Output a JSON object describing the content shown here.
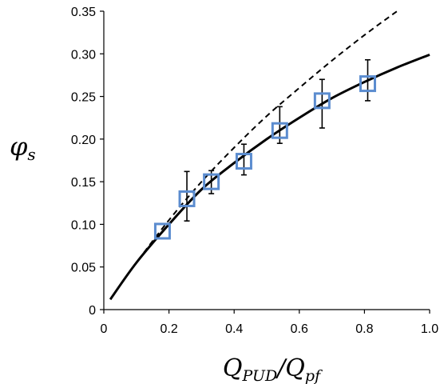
{
  "chart_data": {
    "type": "scatter",
    "title": "",
    "xlabel_main": "Q",
    "xlabel_sub1": "PUD",
    "xlabel_slash": "/Q",
    "xlabel_sub2": "pf",
    "ylabel_main": "φ",
    "ylabel_sub": "s",
    "xlim": [
      0,
      1.0
    ],
    "ylim": [
      0,
      0.35
    ],
    "x_ticks": [
      "0",
      "0.2",
      "0.4",
      "0.6",
      "0.8",
      "1.0"
    ],
    "x_tick_values": [
      0,
      0.2,
      0.4,
      0.6,
      0.8,
      1.0
    ],
    "y_ticks": [
      "0",
      "0.05",
      "0.10",
      "0.15",
      "0.20",
      "0.25",
      "0.30",
      "0.35"
    ],
    "y_tick_values": [
      0,
      0.05,
      0.1,
      0.15,
      0.2,
      0.25,
      0.3,
      0.35
    ],
    "grid": false,
    "legend": "none",
    "series": [
      {
        "style": "markers",
        "color": "#5b8ccf",
        "points": [
          {
            "x": 0.18,
            "y": 0.092,
            "y_low": 0.092,
            "y_high": 0.092
          },
          {
            "x": 0.255,
            "y": 0.13,
            "y_low": 0.104,
            "y_high": 0.162
          },
          {
            "x": 0.33,
            "y": 0.15,
            "y_low": 0.136,
            "y_high": 0.163
          },
          {
            "x": 0.43,
            "y": 0.174,
            "y_low": 0.158,
            "y_high": 0.194
          },
          {
            "x": 0.54,
            "y": 0.21,
            "y_low": 0.195,
            "y_high": 0.238
          },
          {
            "x": 0.67,
            "y": 0.245,
            "y_low": 0.213,
            "y_high": 0.27
          },
          {
            "x": 0.81,
            "y": 0.265,
            "y_low": 0.245,
            "y_high": 0.293
          }
        ]
      },
      {
        "style": "solid-line",
        "color": "#000000",
        "x": [
          0.02,
          0.1,
          0.2,
          0.3,
          0.4,
          0.5,
          0.6,
          0.7,
          0.8,
          0.9,
          1.0
        ],
        "y": [
          0.012,
          0.055,
          0.1,
          0.141,
          0.172,
          0.2,
          0.225,
          0.248,
          0.267,
          0.284,
          0.299
        ]
      },
      {
        "style": "dashed-line",
        "color": "#000000",
        "x": [
          0.02,
          0.1,
          0.2,
          0.3,
          0.4,
          0.5,
          0.6,
          0.7,
          0.8,
          0.9
        ],
        "y": [
          0.012,
          0.055,
          0.105,
          0.15,
          0.19,
          0.227,
          0.26,
          0.292,
          0.322,
          0.35
        ]
      }
    ]
  }
}
